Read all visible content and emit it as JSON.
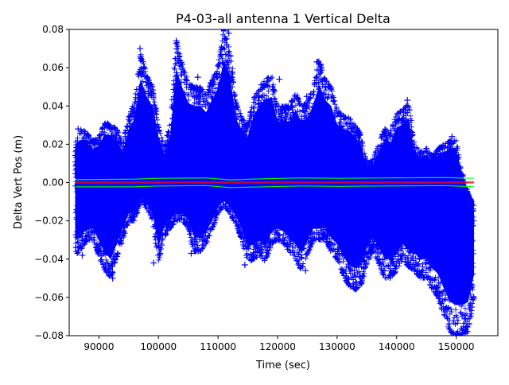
{
  "chart_data": {
    "type": "scatter",
    "title": "P4-03-all antenna 1 Vertical Delta",
    "xlabel": "Time (sec)",
    "ylabel": "Delta Vert Pos (m)",
    "xlim": [
      85000,
      157000
    ],
    "ylim": [
      -0.08,
      0.08
    ],
    "x_ticks": [
      90000,
      100000,
      110000,
      120000,
      130000,
      140000,
      150000
    ],
    "x_tick_labels": [
      "90000",
      "100000",
      "110000",
      "120000",
      "130000",
      "140000",
      "150000"
    ],
    "y_ticks": [
      -0.08,
      -0.06,
      -0.04,
      -0.02,
      0.0,
      0.02,
      0.04,
      0.06,
      0.08
    ],
    "y_tick_labels": [
      "−0.08",
      "−0.06",
      "−0.04",
      "−0.02",
      "0.00",
      "0.02",
      "0.04",
      "0.06",
      "0.08"
    ],
    "grid": false,
    "legend": "none",
    "colors": {
      "scatter": "#0000ff",
      "band": "#00ff00",
      "mean": "#ff0000"
    },
    "series": [
      {
        "marker": "+",
        "envelope": {
          "x": [
            86000,
            87000,
            88000,
            89000,
            90000,
            91000,
            92000,
            93000,
            94000,
            95000,
            96000,
            97000,
            98000,
            99000,
            100000,
            101000,
            102000,
            103000,
            104000,
            105000,
            106000,
            107000,
            108000,
            109000,
            110000,
            111000,
            112000,
            113000,
            114000,
            115000,
            116000,
            117000,
            118000,
            119000,
            120000,
            121000,
            122000,
            123000,
            124000,
            125000,
            126000,
            127000,
            128000,
            129000,
            130000,
            131000,
            132000,
            133000,
            134000,
            135000,
            136000,
            137000,
            138000,
            139000,
            140000,
            141000,
            142000,
            143000,
            144000,
            145000,
            146000,
            147000,
            148000,
            149000,
            150000,
            151000,
            152000,
            153000
          ],
          "ymax": [
            0.02,
            0.028,
            0.026,
            0.022,
            0.024,
            0.032,
            0.03,
            0.028,
            0.02,
            0.035,
            0.042,
            0.068,
            0.056,
            0.05,
            0.03,
            0.018,
            0.032,
            0.074,
            0.062,
            0.052,
            0.05,
            0.05,
            0.046,
            0.054,
            0.062,
            0.08,
            0.07,
            0.042,
            0.034,
            0.03,
            0.044,
            0.05,
            0.054,
            0.056,
            0.04,
            0.04,
            0.04,
            0.047,
            0.04,
            0.042,
            0.05,
            0.064,
            0.054,
            0.05,
            0.038,
            0.035,
            0.034,
            0.03,
            0.025,
            0.01,
            0.012,
            0.02,
            0.028,
            0.026,
            0.036,
            0.038,
            0.042,
            0.02,
            0.016,
            0.018,
            0.014,
            0.018,
            0.02,
            0.022,
            0.022,
            0.005,
            -0.005,
            -0.012
          ],
          "ymin": [
            -0.038,
            -0.035,
            -0.03,
            -0.03,
            -0.038,
            -0.046,
            -0.05,
            -0.04,
            -0.03,
            -0.02,
            -0.02,
            -0.01,
            -0.014,
            -0.02,
            -0.042,
            -0.028,
            -0.024,
            -0.02,
            -0.02,
            -0.024,
            -0.036,
            -0.036,
            -0.032,
            -0.025,
            -0.016,
            -0.012,
            -0.016,
            -0.022,
            -0.03,
            -0.042,
            -0.04,
            -0.038,
            -0.042,
            -0.032,
            -0.03,
            -0.032,
            -0.036,
            -0.04,
            -0.046,
            -0.038,
            -0.03,
            -0.03,
            -0.03,
            -0.036,
            -0.04,
            -0.048,
            -0.054,
            -0.056,
            -0.054,
            -0.042,
            -0.036,
            -0.042,
            -0.05,
            -0.05,
            -0.046,
            -0.04,
            -0.044,
            -0.046,
            -0.05,
            -0.05,
            -0.056,
            -0.06,
            -0.07,
            -0.078,
            -0.08,
            -0.08,
            -0.078,
            -0.06
          ]
        },
        "points": [
          [
            86500,
            0.028
          ],
          [
            87200,
            -0.038
          ],
          [
            92300,
            -0.05
          ],
          [
            96900,
            0.07
          ],
          [
            97000,
            0.066
          ],
          [
            99200,
            -0.042
          ],
          [
            103000,
            0.074
          ],
          [
            103200,
            0.068
          ],
          [
            105500,
            -0.037
          ],
          [
            106600,
            0.055
          ],
          [
            111600,
            0.08
          ],
          [
            111800,
            0.078
          ],
          [
            114500,
            -0.043
          ],
          [
            120300,
            0.054
          ],
          [
            124700,
            -0.046
          ],
          [
            124900,
            0.045
          ],
          [
            126600,
            0.063
          ],
          [
            126800,
            0.063
          ],
          [
            128000,
            0.05
          ],
          [
            133100,
            -0.052
          ],
          [
            133300,
            -0.055
          ],
          [
            137600,
            0.025
          ],
          [
            139000,
            0.027
          ],
          [
            141800,
            0.043
          ],
          [
            141900,
            0.04
          ],
          [
            143500,
            -0.048
          ],
          [
            146900,
            -0.055
          ],
          [
            149300,
            0.024
          ],
          [
            150700,
            -0.08
          ],
          [
            151500,
            -0.079
          ],
          [
            152700,
            -0.015
          ],
          [
            152900,
            -0.06
          ]
        ]
      },
      {
        "role": "band",
        "x": [
          86000,
          96000,
          100000,
          108000,
          112000,
          118000,
          124000,
          130000,
          138000,
          148000,
          153000
        ],
        "upper": [
          0.0015,
          0.0018,
          0.0022,
          0.0024,
          0.0014,
          0.002,
          0.0024,
          0.0022,
          0.0024,
          0.0026,
          0.0022
        ],
        "lower": [
          -0.0022,
          -0.0022,
          -0.0018,
          -0.0016,
          -0.0026,
          -0.0022,
          -0.0018,
          -0.002,
          -0.0018,
          -0.0016,
          -0.0022
        ]
      },
      {
        "role": "mean",
        "x": [
          86000,
          153000
        ],
        "y": [
          -0.0002,
          -0.0002
        ]
      },
      {
        "role": "mean-2",
        "x": [
          86000,
          153000
        ],
        "y": [
          0.0003,
          0.0003
        ]
      }
    ]
  }
}
